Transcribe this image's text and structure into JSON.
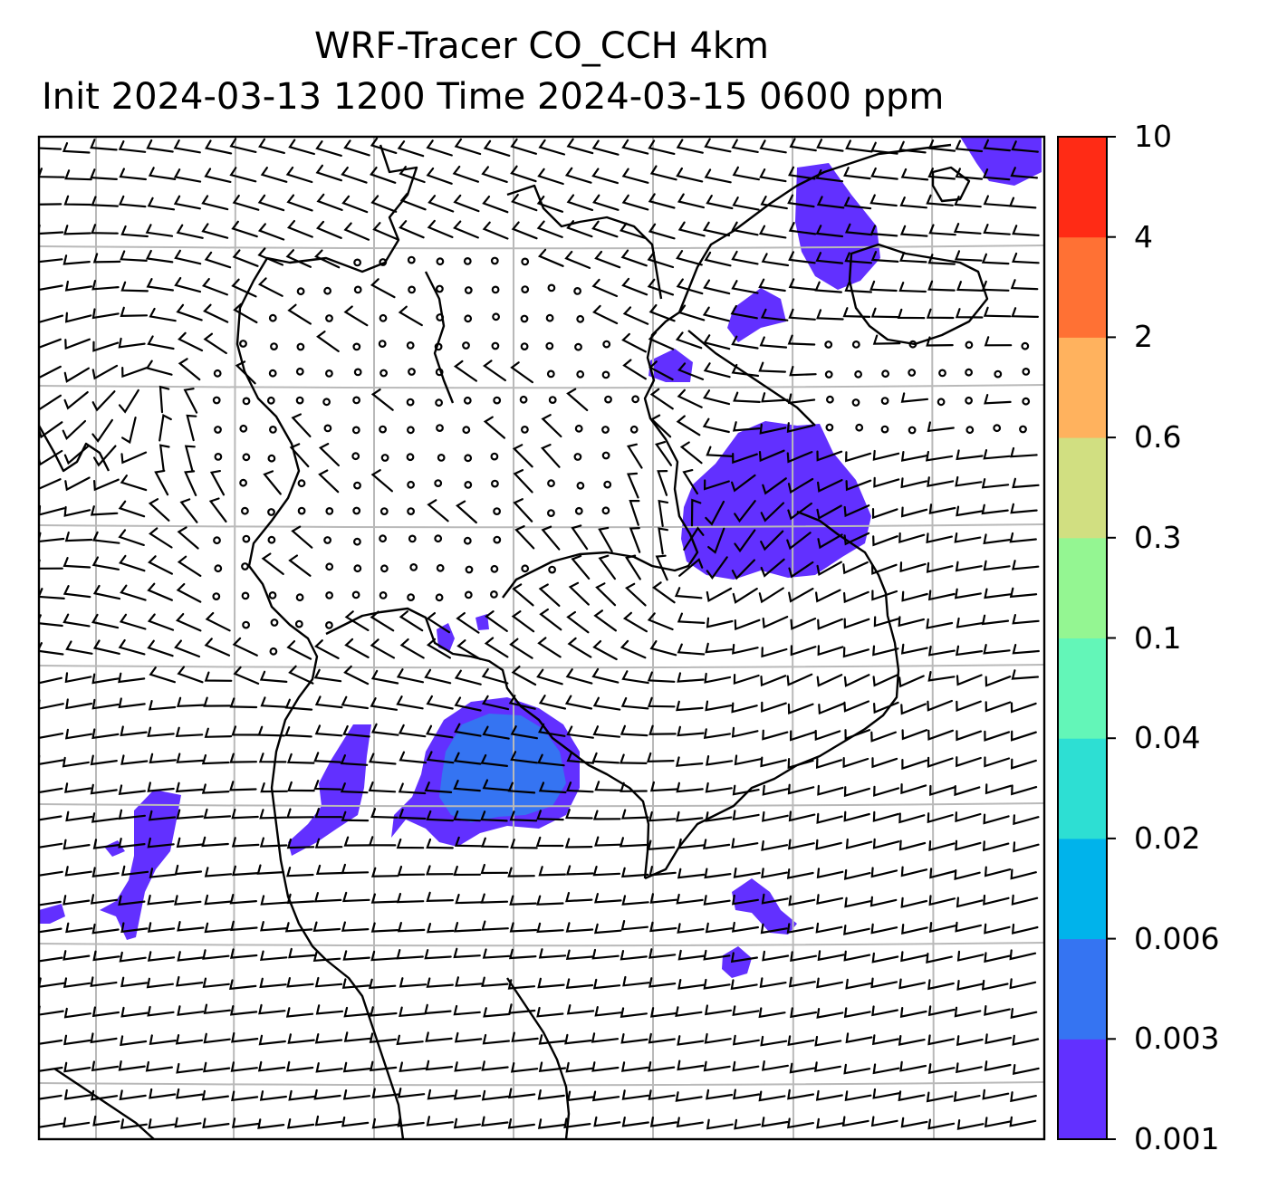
{
  "title": {
    "line1": "WRF-Tracer CO_CCH 4km",
    "line2": "Init 2024-03-13 1200 Time 2024-03-15 0600 ppm"
  },
  "colorbar": {
    "levels": [
      "0.001",
      "0.003",
      "0.006",
      "0.02",
      "0.04",
      "0.1",
      "0.3",
      "0.6",
      "2",
      "4",
      "10"
    ],
    "colors": [
      "#6230ff",
      "#3574f2",
      "#00b3eb",
      "#2ddfd3",
      "#63f6b8",
      "#94f692",
      "#d1df81",
      "#ffb25e",
      "#ff7134",
      "#ff2b15"
    ]
  },
  "map": {
    "background": "#ffffff",
    "gridline_color": "#b9b9b9",
    "coastline_color": "#000000",
    "plume_colors": {
      "low": "#6230ff",
      "mid": "#3574f2"
    }
  }
}
